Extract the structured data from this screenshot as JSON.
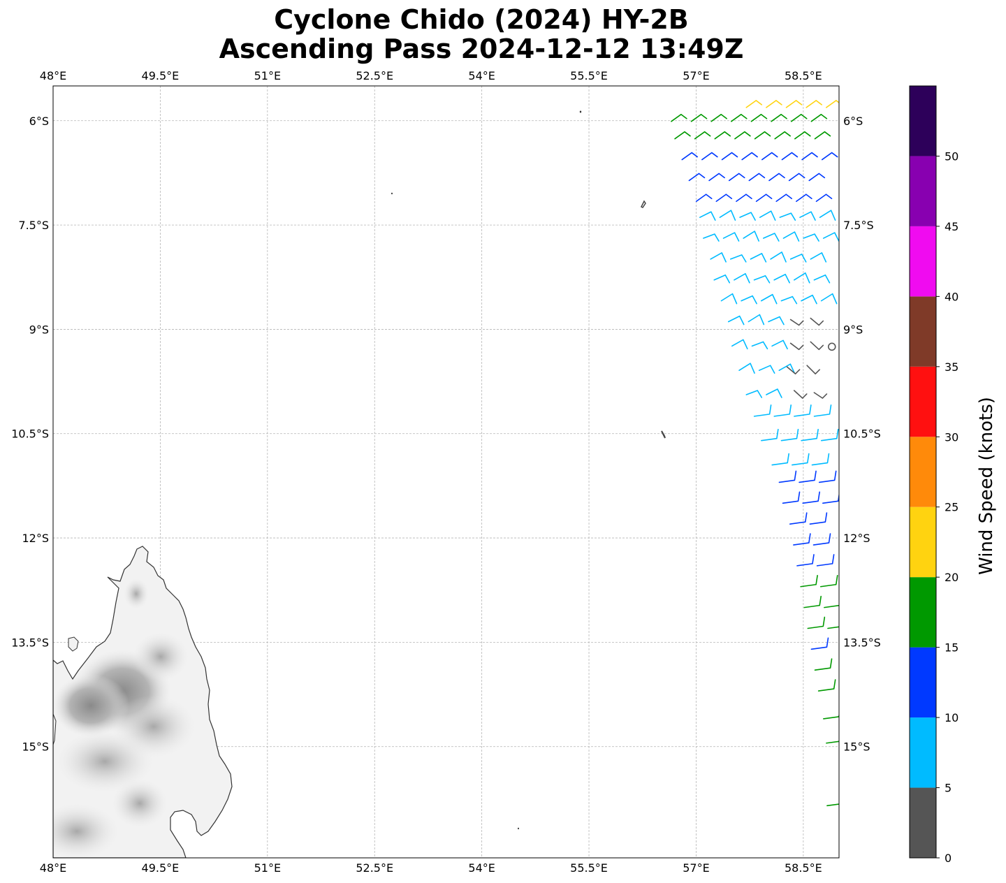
{
  "title": {
    "line1": "Cyclone Chido (2024) HY-2B",
    "line2": "Ascending Pass 2024-12-12 13:49Z"
  },
  "map": {
    "lon_range": [
      48.0,
      59.0
    ],
    "lat_range": [
      -16.6,
      -5.5
    ],
    "grid": true,
    "lon_ticks": [
      {
        "value": 48.0,
        "label": "48°E"
      },
      {
        "value": 49.5,
        "label": "49.5°E"
      },
      {
        "value": 51.0,
        "label": "51°E"
      },
      {
        "value": 52.5,
        "label": "52.5°E"
      },
      {
        "value": 54.0,
        "label": "54°E"
      },
      {
        "value": 55.5,
        "label": "55.5°E"
      },
      {
        "value": 57.0,
        "label": "57°E"
      },
      {
        "value": 58.5,
        "label": "58.5°E"
      }
    ],
    "lat_ticks": [
      {
        "value": -6.0,
        "label": "6°S"
      },
      {
        "value": -7.5,
        "label": "7.5°S"
      },
      {
        "value": -9.0,
        "label": "9°S"
      },
      {
        "value": -10.5,
        "label": "10.5°S"
      },
      {
        "value": -12.0,
        "label": "12°S"
      },
      {
        "value": -13.5,
        "label": "13.5°S"
      },
      {
        "value": -15.0,
        "label": "15°S"
      }
    ]
  },
  "colorbar": {
    "label": "Wind Speed (knots)",
    "ticks": [
      0,
      5,
      10,
      15,
      20,
      25,
      30,
      35,
      40,
      45,
      50
    ],
    "bins": [
      {
        "min": 0,
        "max": 5,
        "color": "#555555"
      },
      {
        "min": 5,
        "max": 10,
        "color": "#00bbff"
      },
      {
        "min": 10,
        "max": 15,
        "color": "#0039ff"
      },
      {
        "min": 15,
        "max": 20,
        "color": "#009900"
      },
      {
        "min": 20,
        "max": 25,
        "color": "#ffd310"
      },
      {
        "min": 25,
        "max": 30,
        "color": "#ff8a0a"
      },
      {
        "min": 30,
        "max": 35,
        "color": "#ff1010"
      },
      {
        "min": 35,
        "max": 40,
        "color": "#7f3a28"
      },
      {
        "min": 40,
        "max": 45,
        "color": "#f00bf0"
      },
      {
        "min": 45,
        "max": 50,
        "color": "#8800b0"
      },
      {
        "min": 50,
        "max": 55,
        "color": "#2d005a"
      }
    ]
  },
  "wind_swath": [
    {
      "lat": -5.75,
      "lon_start": 57.8,
      "lon_end": 58.95,
      "speed": 23
    },
    {
      "lat": -5.95,
      "lon_start": 56.75,
      "lon_end": 58.95,
      "speed": 17
    },
    {
      "lat": -6.2,
      "lon_start": 56.8,
      "lon_end": 58.95,
      "speed": 17
    },
    {
      "lat": -6.5,
      "lon_start": 56.9,
      "lon_end": 58.9,
      "speed": 14
    },
    {
      "lat": -6.8,
      "lon_start": 57.0,
      "lon_end": 58.9,
      "speed": 13
    },
    {
      "lat": -7.1,
      "lon_start": 57.1,
      "lon_end": 58.9,
      "speed": 12
    },
    {
      "lat": -7.35,
      "lon_start": 57.15,
      "lon_end": 58.9,
      "speed": 8
    },
    {
      "lat": -7.65,
      "lon_start": 57.2,
      "lon_end": 58.9,
      "speed": 8
    },
    {
      "lat": -7.95,
      "lon_start": 57.3,
      "lon_end": 58.9,
      "speed": 7
    },
    {
      "lat": -8.25,
      "lon_start": 57.35,
      "lon_end": 58.9,
      "speed": 7
    },
    {
      "lat": -8.55,
      "lon_start": 57.45,
      "lon_end": 58.9,
      "speed": 7
    },
    {
      "lat": -8.85,
      "lon_start": 57.55,
      "lon_end": 58.3,
      "speed": 6
    },
    {
      "lat": -8.9,
      "lon_start": 58.4,
      "lon_end": 58.9,
      "speed": 3
    },
    {
      "lat": -9.2,
      "lon_start": 57.6,
      "lon_end": 58.3,
      "speed": 6
    },
    {
      "lat": -9.25,
      "lon_start": 58.4,
      "lon_end": 58.9,
      "speed": 3
    },
    {
      "lat": -9.55,
      "lon_start": 57.7,
      "lon_end": 58.3,
      "speed": 6
    },
    {
      "lat": -9.6,
      "lon_start": 58.35,
      "lon_end": 58.9,
      "speed": 3
    },
    {
      "lat": -9.9,
      "lon_start": 57.8,
      "lon_end": 58.35,
      "speed": 6
    },
    {
      "lat": -9.95,
      "lon_start": 58.45,
      "lon_end": 58.8,
      "speed": 3
    },
    {
      "lat": -10.25,
      "lon_start": 57.95,
      "lon_end": 58.95,
      "speed": 7
    },
    {
      "lat": -10.6,
      "lon_start": 58.05,
      "lon_end": 58.95,
      "speed": 8
    },
    {
      "lat": -10.95,
      "lon_start": 58.2,
      "lon_end": 59.0,
      "speed": 9
    },
    {
      "lat": -11.2,
      "lon_start": 58.3,
      "lon_end": 59.0,
      "speed": 12
    },
    {
      "lat": -11.5,
      "lon_start": 58.35,
      "lon_end": 59.0,
      "speed": 12
    },
    {
      "lat": -11.8,
      "lon_start": 58.45,
      "lon_end": 59.0,
      "speed": 12
    },
    {
      "lat": -12.1,
      "lon_start": 58.5,
      "lon_end": 59.0,
      "speed": 12
    },
    {
      "lat": -12.4,
      "lon_start": 58.55,
      "lon_end": 59.0,
      "speed": 12
    },
    {
      "lat": -12.7,
      "lon_start": 58.6,
      "lon_end": 59.0,
      "speed": 16
    },
    {
      "lat": -13.0,
      "lon_start": 58.65,
      "lon_end": 59.0,
      "speed": 16
    },
    {
      "lat": -13.3,
      "lon_start": 58.7,
      "lon_end": 59.0,
      "speed": 16
    },
    {
      "lat": -13.6,
      "lon_start": 58.75,
      "lon_end": 59.0,
      "speed": 12
    },
    {
      "lat": -13.9,
      "lon_start": 58.8,
      "lon_end": 59.0,
      "speed": 16
    },
    {
      "lat": -14.2,
      "lon_start": 58.85,
      "lon_end": 59.0,
      "speed": 16
    },
    {
      "lat": -14.6,
      "lon_start": 58.92,
      "lon_end": 59.0,
      "speed": 16
    },
    {
      "lat": -14.95,
      "lon_start": 58.96,
      "lon_end": 59.0,
      "speed": 16
    },
    {
      "lat": -15.85,
      "lon_start": 58.97,
      "lon_end": 59.0,
      "speed": 16
    }
  ],
  "calm_marker": {
    "lon": 58.9,
    "lat": -9.25
  }
}
